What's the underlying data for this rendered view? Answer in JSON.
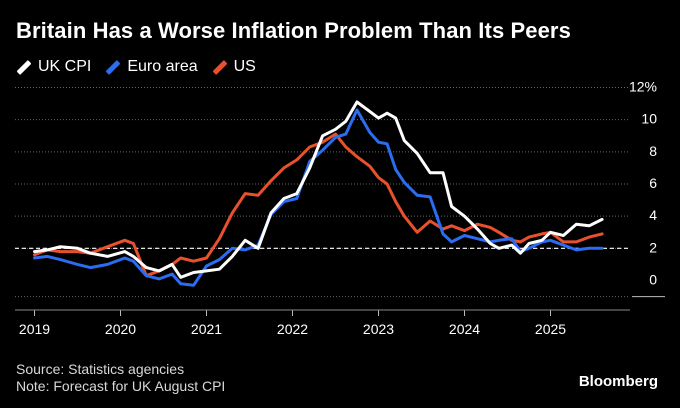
{
  "header": {
    "title": "Britain Has a Worse Inflation Problem Than Its Peers"
  },
  "footer": {
    "source": "Source: Statistics agencies",
    "note": "Note: Forecast for UK August CPI",
    "brand": "Bloomberg"
  },
  "chart_data": {
    "type": "line",
    "title": "Britain Has a Worse Inflation Problem Than Its Peers",
    "ylim": [
      -1,
      12
    ],
    "xlim": [
      2019.0,
      2026.0
    ],
    "target_line": 2,
    "y_ticks": [
      {
        "value": 12,
        "label": "12%"
      },
      {
        "value": 10,
        "label": "10"
      },
      {
        "value": 8,
        "label": "8"
      },
      {
        "value": 6,
        "label": "6"
      },
      {
        "value": 4,
        "label": "4"
      },
      {
        "value": 2,
        "label": "2"
      },
      {
        "value": 0,
        "label": "0"
      }
    ],
    "x_ticks": [
      {
        "value": 2019,
        "label": "2019"
      },
      {
        "value": 2020,
        "label": "2020"
      },
      {
        "value": 2021,
        "label": "2021"
      },
      {
        "value": 2022,
        "label": "2022"
      },
      {
        "value": 2023,
        "label": "2023"
      },
      {
        "value": 2024,
        "label": "2024"
      },
      {
        "value": 2025,
        "label": "2025"
      }
    ],
    "grid": true,
    "legend_position": "top-left",
    "series": [
      {
        "name": "UK CPI",
        "color": "#ffffff",
        "points": [
          [
            2019.0,
            1.8
          ],
          [
            2019.15,
            1.9
          ],
          [
            2019.3,
            2.1
          ],
          [
            2019.5,
            2.0
          ],
          [
            2019.65,
            1.7
          ],
          [
            2019.85,
            1.5
          ],
          [
            2020.05,
            1.8
          ],
          [
            2020.15,
            1.5
          ],
          [
            2020.3,
            0.8
          ],
          [
            2020.45,
            0.6
          ],
          [
            2020.6,
            1.0
          ],
          [
            2020.7,
            0.2
          ],
          [
            2020.85,
            0.5
          ],
          [
            2021.0,
            0.6
          ],
          [
            2021.15,
            0.7
          ],
          [
            2021.3,
            1.5
          ],
          [
            2021.45,
            2.5
          ],
          [
            2021.6,
            2.0
          ],
          [
            2021.75,
            4.2
          ],
          [
            2021.9,
            5.1
          ],
          [
            2022.05,
            5.4
          ],
          [
            2022.2,
            7.0
          ],
          [
            2022.35,
            9.0
          ],
          [
            2022.5,
            9.4
          ],
          [
            2022.62,
            9.9
          ],
          [
            2022.75,
            11.1
          ],
          [
            2022.9,
            10.5
          ],
          [
            2023.0,
            10.1
          ],
          [
            2023.1,
            10.4
          ],
          [
            2023.2,
            10.1
          ],
          [
            2023.3,
            8.7
          ],
          [
            2023.45,
            7.9
          ],
          [
            2023.6,
            6.7
          ],
          [
            2023.75,
            6.7
          ],
          [
            2023.85,
            4.6
          ],
          [
            2024.0,
            4.0
          ],
          [
            2024.15,
            3.2
          ],
          [
            2024.3,
            2.3
          ],
          [
            2024.4,
            2.0
          ],
          [
            2024.55,
            2.2
          ],
          [
            2024.65,
            1.7
          ],
          [
            2024.75,
            2.3
          ],
          [
            2024.9,
            2.5
          ],
          [
            2025.0,
            3.0
          ],
          [
            2025.15,
            2.8
          ],
          [
            2025.3,
            3.5
          ],
          [
            2025.45,
            3.4
          ],
          [
            2025.6,
            3.8
          ]
        ]
      },
      {
        "name": "Euro area",
        "color": "#2b6cf0",
        "points": [
          [
            2019.0,
            1.4
          ],
          [
            2019.15,
            1.5
          ],
          [
            2019.3,
            1.3
          ],
          [
            2019.5,
            1.0
          ],
          [
            2019.65,
            0.8
          ],
          [
            2019.85,
            1.0
          ],
          [
            2020.05,
            1.4
          ],
          [
            2020.15,
            1.2
          ],
          [
            2020.3,
            0.3
          ],
          [
            2020.45,
            0.1
          ],
          [
            2020.6,
            0.4
          ],
          [
            2020.7,
            -0.2
          ],
          [
            2020.85,
            -0.3
          ],
          [
            2021.0,
            0.9
          ],
          [
            2021.15,
            1.3
          ],
          [
            2021.3,
            2.0
          ],
          [
            2021.45,
            1.9
          ],
          [
            2021.6,
            2.2
          ],
          [
            2021.75,
            4.1
          ],
          [
            2021.9,
            4.9
          ],
          [
            2022.05,
            5.1
          ],
          [
            2022.2,
            7.4
          ],
          [
            2022.35,
            8.1
          ],
          [
            2022.5,
            8.9
          ],
          [
            2022.62,
            9.1
          ],
          [
            2022.75,
            10.6
          ],
          [
            2022.9,
            9.2
          ],
          [
            2023.0,
            8.6
          ],
          [
            2023.1,
            8.5
          ],
          [
            2023.2,
            6.9
          ],
          [
            2023.3,
            6.1
          ],
          [
            2023.45,
            5.3
          ],
          [
            2023.6,
            5.2
          ],
          [
            2023.75,
            2.9
          ],
          [
            2023.85,
            2.4
          ],
          [
            2024.0,
            2.8
          ],
          [
            2024.15,
            2.6
          ],
          [
            2024.3,
            2.4
          ],
          [
            2024.4,
            2.5
          ],
          [
            2024.55,
            2.6
          ],
          [
            2024.65,
            1.8
          ],
          [
            2024.75,
            2.0
          ],
          [
            2024.9,
            2.4
          ],
          [
            2025.0,
            2.5
          ],
          [
            2025.15,
            2.2
          ],
          [
            2025.3,
            1.9
          ],
          [
            2025.45,
            2.0
          ],
          [
            2025.6,
            2.0
          ]
        ]
      },
      {
        "name": "US",
        "color": "#e8512c",
        "points": [
          [
            2019.0,
            1.6
          ],
          [
            2019.15,
            1.9
          ],
          [
            2019.3,
            1.8
          ],
          [
            2019.5,
            1.8
          ],
          [
            2019.65,
            1.7
          ],
          [
            2019.85,
            2.1
          ],
          [
            2020.05,
            2.5
          ],
          [
            2020.15,
            2.3
          ],
          [
            2020.3,
            0.3
          ],
          [
            2020.45,
            0.6
          ],
          [
            2020.6,
            1.0
          ],
          [
            2020.7,
            1.4
          ],
          [
            2020.85,
            1.2
          ],
          [
            2021.0,
            1.4
          ],
          [
            2021.15,
            2.6
          ],
          [
            2021.3,
            4.2
          ],
          [
            2021.45,
            5.4
          ],
          [
            2021.6,
            5.3
          ],
          [
            2021.75,
            6.2
          ],
          [
            2021.9,
            7.0
          ],
          [
            2022.05,
            7.5
          ],
          [
            2022.2,
            8.3
          ],
          [
            2022.35,
            8.6
          ],
          [
            2022.5,
            9.1
          ],
          [
            2022.62,
            8.3
          ],
          [
            2022.75,
            7.7
          ],
          [
            2022.9,
            7.1
          ],
          [
            2023.0,
            6.4
          ],
          [
            2023.1,
            6.0
          ],
          [
            2023.2,
            4.9
          ],
          [
            2023.3,
            4.0
          ],
          [
            2023.45,
            3.0
          ],
          [
            2023.6,
            3.7
          ],
          [
            2023.75,
            3.2
          ],
          [
            2023.85,
            3.4
          ],
          [
            2024.0,
            3.1
          ],
          [
            2024.15,
            3.5
          ],
          [
            2024.3,
            3.3
          ],
          [
            2024.4,
            3.0
          ],
          [
            2024.55,
            2.5
          ],
          [
            2024.65,
            2.4
          ],
          [
            2024.75,
            2.7
          ],
          [
            2024.9,
            2.9
          ],
          [
            2025.0,
            3.0
          ],
          [
            2025.15,
            2.4
          ],
          [
            2025.3,
            2.4
          ],
          [
            2025.45,
            2.7
          ],
          [
            2025.6,
            2.9
          ]
        ]
      }
    ]
  }
}
